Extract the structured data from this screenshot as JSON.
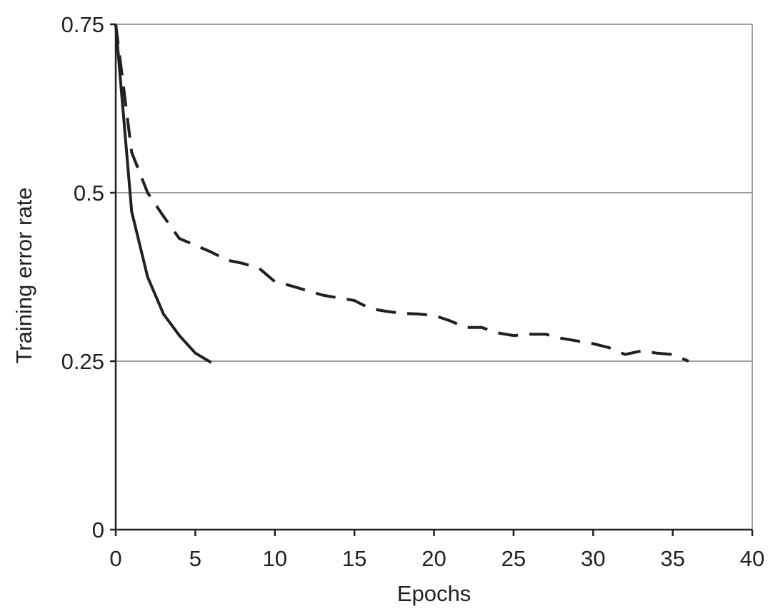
{
  "chart_data": {
    "type": "line",
    "title": "",
    "xlabel": "Epochs",
    "ylabel": "Training error rate",
    "xlim": [
      0,
      40
    ],
    "ylim": [
      0,
      0.75
    ],
    "xticks": [
      0,
      5,
      10,
      15,
      20,
      25,
      30,
      35,
      40
    ],
    "xtick_labels": [
      "0",
      "5",
      "10",
      "15",
      "20",
      "25",
      "30",
      "35",
      "40"
    ],
    "yticks": [
      0,
      0.25,
      0.5,
      0.75
    ],
    "ytick_labels": [
      "0",
      "0.25",
      "0.5",
      "0.75"
    ],
    "grid": "horizontal",
    "legend": "none",
    "series": [
      {
        "style": "solid",
        "color": "#231f20",
        "x": [
          0,
          1,
          2,
          3,
          4,
          5,
          6
        ],
        "y": [
          0.75,
          0.472,
          0.375,
          0.32,
          0.288,
          0.262,
          0.248
        ]
      },
      {
        "style": "dashed",
        "color": "#231f20",
        "x": [
          0,
          1,
          2,
          3,
          4,
          5,
          6,
          7,
          8,
          9,
          10,
          11,
          12,
          13,
          14,
          15,
          16,
          17,
          18,
          19,
          20,
          21,
          22,
          23,
          24,
          25,
          26,
          27,
          28,
          29,
          30,
          31,
          32,
          33,
          34,
          35,
          36
        ],
        "y": [
          0.75,
          0.56,
          0.5,
          0.465,
          0.432,
          0.422,
          0.412,
          0.4,
          0.395,
          0.388,
          0.368,
          0.362,
          0.355,
          0.348,
          0.344,
          0.34,
          0.328,
          0.324,
          0.321,
          0.32,
          0.318,
          0.31,
          0.3,
          0.3,
          0.292,
          0.288,
          0.29,
          0.29,
          0.284,
          0.28,
          0.276,
          0.27,
          0.26,
          0.265,
          0.262,
          0.26,
          0.25
        ]
      }
    ]
  }
}
